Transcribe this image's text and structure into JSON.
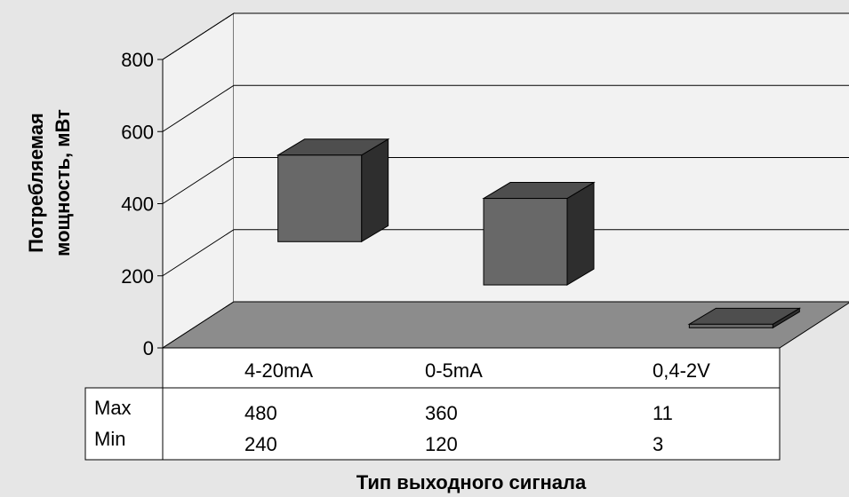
{
  "chart_data": {
    "type": "bar",
    "style": "3d-floating-range-bars",
    "categories": [
      "4-20mA",
      "0-5mA",
      "0,4-2V"
    ],
    "series": [
      {
        "name": "Max",
        "values": [
          480,
          360,
          11
        ]
      },
      {
        "name": "Min",
        "values": [
          240,
          120,
          3
        ]
      }
    ],
    "ylim": [
      0,
      800
    ],
    "yticks": [
      "0",
      "200",
      "400",
      "600",
      "800"
    ],
    "xlabel": "Тип выходного сигнала",
    "ylabel_lines": [
      "Потребляемая",
      "мощность, мВт"
    ],
    "grid": true,
    "legend": "data-table-below",
    "colors": {
      "background": "#e6e6e6",
      "wall": "#f2f2f2",
      "floor": "#8c8c8c",
      "bar_front": "#686868",
      "bar_top": "#4e4e4e",
      "bar_side": "#2e2e2e"
    }
  }
}
